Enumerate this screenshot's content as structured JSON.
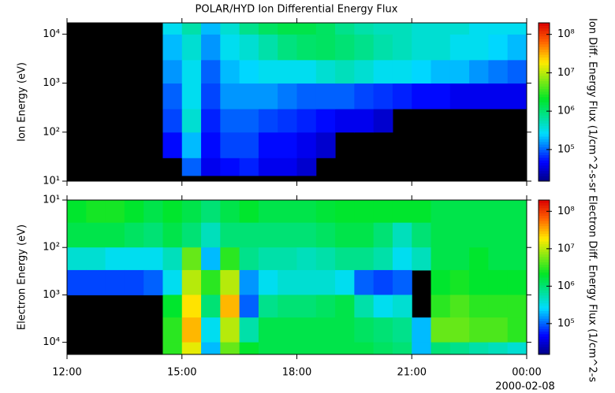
{
  "chart_data": [
    {
      "type": "heatmap",
      "title": "POLAR/HYD  Ion Differential Energy Flux",
      "ylabel": "Ion Energy (eV)",
      "colorbar_label": "Ion Diff. Energy Flux (1/cm^2-s-sr",
      "x": [
        12,
        12.5,
        13,
        13.5,
        14,
        14.5,
        15,
        15.5,
        16,
        16.5,
        17,
        17.5,
        18,
        18.5,
        19,
        19.5,
        20,
        20.5,
        21,
        21.5,
        22,
        22.5,
        23,
        23.5,
        24
      ],
      "y": [
        13,
        30,
        100,
        300,
        1000,
        3000,
        10000,
        17000
      ],
      "z": [
        [
          null,
          null,
          null,
          null,
          null,
          null,
          100000.0,
          40000.0,
          50000.0,
          60000.0,
          40000.0,
          40000.0,
          30000.0,
          null,
          null,
          null,
          null,
          null,
          null,
          null,
          null,
          null,
          null,
          null
        ],
        [
          null,
          null,
          null,
          null,
          null,
          50000.0,
          200000.0,
          50000.0,
          80000.0,
          80000.0,
          50000.0,
          50000.0,
          40000.0,
          30000.0,
          null,
          null,
          null,
          null,
          null,
          null,
          null,
          null,
          null,
          null
        ],
        [
          null,
          null,
          null,
          null,
          null,
          80000.0,
          400000.0,
          60000.0,
          100000.0,
          100000.0,
          80000.0,
          70000.0,
          60000.0,
          50000.0,
          40000.0,
          40000.0,
          30000.0,
          null,
          null,
          null,
          null,
          null,
          null,
          null
        ],
        [
          null,
          null,
          null,
          null,
          null,
          100000.0,
          300000.0,
          80000.0,
          150000.0,
          150000.0,
          150000.0,
          120000.0,
          100000.0,
          100000.0,
          100000.0,
          80000.0,
          70000.0,
          60000.0,
          50000.0,
          50000.0,
          40000.0,
          40000.0,
          40000.0,
          40000.0
        ],
        [
          null,
          null,
          null,
          null,
          null,
          150000.0,
          300000.0,
          100000.0,
          200000.0,
          250000.0,
          300000.0,
          300000.0,
          300000.0,
          400000.0,
          500000.0,
          400000.0,
          300000.0,
          300000.0,
          250000.0,
          200000.0,
          200000.0,
          150000.0,
          120000.0,
          100000.0
        ],
        [
          null,
          null,
          null,
          null,
          null,
          200000.0,
          400000.0,
          150000.0,
          300000.0,
          400000.0,
          600000.0,
          900000.0,
          1100000.0,
          1200000.0,
          1000000.0,
          800000.0,
          600000.0,
          500000.0,
          400000.0,
          400000.0,
          300000.0,
          300000.0,
          250000.0,
          200000.0
        ],
        [
          null,
          null,
          null,
          null,
          null,
          300000.0,
          600000.0,
          200000.0,
          400000.0,
          800000.0,
          1200000.0,
          1500000.0,
          1500000.0,
          1200000.0,
          800000.0,
          600000.0,
          500000.0,
          500000.0,
          400000.0,
          400000.0,
          400000.0,
          300000.0,
          300000.0,
          300000.0
        ]
      ],
      "xlim": [
        12,
        24
      ],
      "ylim": [
        10,
        17000
      ],
      "ylog": true,
      "y_reversed": false,
      "yticks": [
        {
          "value": 10,
          "label": "10¹"
        },
        {
          "value": 100,
          "label": "10²"
        },
        {
          "value": 1000,
          "label": "10³"
        },
        {
          "value": 10000,
          "label": "10⁴"
        }
      ],
      "clim": [
        15000,
        200000000
      ],
      "clog": true,
      "cticks": [
        {
          "value": 100000,
          "label": "10⁵"
        },
        {
          "value": 1000000,
          "label": "10⁶"
        },
        {
          "value": 10000000,
          "label": "10⁷"
        },
        {
          "value": 100000000,
          "label": "10⁸"
        }
      ]
    },
    {
      "type": "heatmap",
      "ylabel": "Electron Energy (eV)",
      "colorbar_label": "Electron Diff. Energy Flux (1/cm^2-s",
      "x": [
        12,
        12.5,
        13,
        13.5,
        14,
        14.5,
        15,
        15.5,
        16,
        16.5,
        17,
        17.5,
        18,
        18.5,
        19,
        19.5,
        20,
        20.5,
        21,
        21.5,
        22,
        22.5,
        23,
        23.5,
        24
      ],
      "y": [
        10,
        30,
        100,
        300,
        1000,
        3000,
        10000,
        18000
      ],
      "z": [
        [
          2000000.0,
          2500000.0,
          2500000.0,
          2000000.0,
          1500000.0,
          2000000.0,
          1500000.0,
          1000000.0,
          1500000.0,
          2000000.0,
          1500000.0,
          1500000.0,
          1500000.0,
          1800000.0,
          2000000.0,
          2000000.0,
          2000000.0,
          2000000.0,
          2000000.0,
          1500000.0,
          1500000.0,
          1500000.0,
          1500000.0,
          1500000.0
        ],
        [
          1500000.0,
          1500000.0,
          1500000.0,
          1200000.0,
          1000000.0,
          1500000.0,
          1000000.0,
          500000.0,
          1000000.0,
          1000000.0,
          1000000.0,
          1000000.0,
          1000000.0,
          1200000.0,
          1500000.0,
          1500000.0,
          1000000.0,
          500000.0,
          1000000.0,
          1500000.0,
          1500000.0,
          1500000.0,
          1500000.0,
          1500000.0
        ],
        [
          400000.0,
          400000.0,
          300000.0,
          300000.0,
          300000.0,
          500000.0,
          5000000.0,
          200000.0,
          3000000.0,
          800000.0,
          600000.0,
          600000.0,
          500000.0,
          600000.0,
          800000.0,
          800000.0,
          600000.0,
          300000.0,
          500000.0,
          1500000.0,
          1500000.0,
          2000000.0,
          1500000.0,
          1500000.0
        ],
        [
          80000.0,
          80000.0,
          80000.0,
          80000.0,
          100000.0,
          300000.0,
          10000000.0,
          3000000.0,
          10000000.0,
          150000.0,
          300000.0,
          400000.0,
          400000.0,
          400000.0,
          300000.0,
          100000.0,
          80000.0,
          100000.0,
          null,
          2000000.0,
          2500000.0,
          2000000.0,
          2000000.0,
          2000000.0
        ],
        [
          null,
          null,
          null,
          null,
          null,
          2000000.0,
          20000000.0,
          1000000.0,
          30000000.0,
          100000.0,
          800000.0,
          1000000.0,
          1000000.0,
          1200000.0,
          1500000.0,
          600000.0,
          300000.0,
          400000.0,
          null,
          3000000.0,
          4000000.0,
          3000000.0,
          3000000.0,
          3000000.0
        ],
        [
          null,
          null,
          null,
          null,
          null,
          3000000.0,
          30000000.0,
          300000.0,
          10000000.0,
          600000.0,
          1500000.0,
          1500000.0,
          1500000.0,
          1500000.0,
          1500000.0,
          1200000.0,
          1000000.0,
          800000.0,
          200000.0,
          5000000.0,
          5000000.0,
          4000000.0,
          4000000.0,
          3000000.0
        ],
        [
          null,
          null,
          null,
          null,
          null,
          3000000.0,
          15000000.0,
          200000.0,
          5000000.0,
          2000000.0,
          1500000.0,
          1500000.0,
          1500000.0,
          1500000.0,
          1500000.0,
          1500000.0,
          1200000.0,
          1000000.0,
          200000.0,
          1000000.0,
          800000.0,
          600000.0,
          500000.0,
          400000.0
        ]
      ],
      "xlim": [
        12,
        24
      ],
      "ylim": [
        10,
        18000
      ],
      "ylog": true,
      "y_reversed": true,
      "xticks": [
        {
          "value": 12,
          "label": "12:00"
        },
        {
          "value": 15,
          "label": "15:00"
        },
        {
          "value": 18,
          "label": "18:00"
        },
        {
          "value": 21,
          "label": "21:00"
        },
        {
          "value": 24,
          "label": "00:00"
        }
      ],
      "date_label": "2000-02-08",
      "yticks": [
        {
          "value": 10,
          "label": "10¹"
        },
        {
          "value": 100,
          "label": "10²"
        },
        {
          "value": 1000,
          "label": "10³"
        },
        {
          "value": 10000,
          "label": "10⁴"
        }
      ],
      "clim": [
        15000,
        200000000
      ],
      "clog": true,
      "cticks": [
        {
          "value": 100000,
          "label": "10⁵"
        },
        {
          "value": 1000000,
          "label": "10⁶"
        },
        {
          "value": 10000000,
          "label": "10⁷"
        },
        {
          "value": 100000000,
          "label": "10⁸"
        }
      ]
    }
  ]
}
